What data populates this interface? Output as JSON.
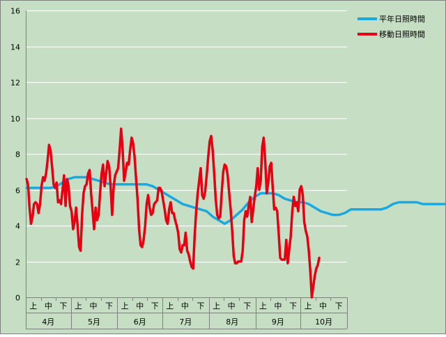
{
  "colors": {
    "background": "#c6dec3",
    "plot_border": "#7f7f7f",
    "grid": "#ffffff",
    "normal_series": "#19a9e0",
    "moving_series": "#e60012",
    "text": "#000000"
  },
  "chart_data": {
    "type": "line",
    "title": "",
    "xlabel": "",
    "ylabel": "",
    "ylim": [
      0,
      16
    ],
    "yticks": [
      0,
      2,
      4,
      6,
      8,
      10,
      12,
      14,
      16
    ],
    "grid": true,
    "legend_position": "top-right",
    "months": [
      "4月",
      "5月",
      "6月",
      "7月",
      "8月",
      "9月",
      "10月"
    ],
    "periods": [
      "上",
      "中",
      "下"
    ],
    "days_per_month": [
      30,
      31,
      30,
      31,
      31,
      30,
      31
    ],
    "series": [
      {
        "name": "平年日照時間",
        "color": "#19a9e0",
        "points": [
          [
            0,
            6.1
          ],
          [
            4,
            6.1
          ],
          [
            8,
            6.1
          ],
          [
            12,
            6.1
          ],
          [
            16,
            6.1
          ],
          [
            20,
            6.2
          ],
          [
            24,
            6.4
          ],
          [
            28,
            6.6
          ],
          [
            32,
            6.7
          ],
          [
            36,
            6.7
          ],
          [
            40,
            6.7
          ],
          [
            44,
            6.6
          ],
          [
            48,
            6.5
          ],
          [
            52,
            6.4
          ],
          [
            56,
            6.3
          ],
          [
            60,
            6.3
          ],
          [
            64,
            6.3
          ],
          [
            68,
            6.3
          ],
          [
            72,
            6.3
          ],
          [
            76,
            6.3
          ],
          [
            80,
            6.3
          ],
          [
            84,
            6.2
          ],
          [
            88,
            6.0
          ],
          [
            92,
            5.8
          ],
          [
            96,
            5.6
          ],
          [
            100,
            5.4
          ],
          [
            104,
            5.2
          ],
          [
            108,
            5.1
          ],
          [
            112,
            5.0
          ],
          [
            116,
            4.9
          ],
          [
            120,
            4.8
          ],
          [
            124,
            4.5
          ],
          [
            128,
            4.3
          ],
          [
            132,
            4.1
          ],
          [
            136,
            4.3
          ],
          [
            140,
            4.6
          ],
          [
            144,
            4.9
          ],
          [
            148,
            5.3
          ],
          [
            152,
            5.6
          ],
          [
            156,
            5.8
          ],
          [
            160,
            5.8
          ],
          [
            164,
            5.8
          ],
          [
            168,
            5.7
          ],
          [
            172,
            5.5
          ],
          [
            176,
            5.4
          ],
          [
            180,
            5.3
          ],
          [
            184,
            5.3
          ],
          [
            188,
            5.2
          ],
          [
            192,
            5.0
          ],
          [
            196,
            4.8
          ],
          [
            200,
            4.7
          ],
          [
            204,
            4.6
          ],
          [
            208,
            4.6
          ],
          [
            212,
            4.7
          ],
          [
            216,
            4.9
          ],
          [
            220,
            4.9
          ],
          [
            224,
            4.9
          ],
          [
            228,
            4.9
          ],
          [
            232,
            4.9
          ],
          [
            236,
            4.9
          ],
          [
            240,
            5.0
          ],
          [
            244,
            5.2
          ],
          [
            248,
            5.3
          ],
          [
            252,
            5.3
          ],
          [
            256,
            5.3
          ],
          [
            260,
            5.3
          ],
          [
            264,
            5.2
          ],
          [
            268,
            5.2
          ],
          [
            272,
            5.2
          ],
          [
            276,
            5.2
          ],
          [
            280,
            5.2
          ],
          [
            283,
            5.1
          ]
        ]
      },
      {
        "name": "移動日照時間",
        "color": "#e60012",
        "points": [
          [
            0,
            6.6
          ],
          [
            1,
            6.3
          ],
          [
            2,
            5.0
          ],
          [
            3,
            4.1
          ],
          [
            4,
            4.5
          ],
          [
            5,
            5.2
          ],
          [
            6,
            5.3
          ],
          [
            7,
            5.2
          ],
          [
            8,
            4.7
          ],
          [
            9,
            5.2
          ],
          [
            10,
            6.2
          ],
          [
            11,
            6.7
          ],
          [
            12,
            6.5
          ],
          [
            13,
            6.9
          ],
          [
            14,
            7.6
          ],
          [
            15,
            8.5
          ],
          [
            16,
            8.2
          ],
          [
            17,
            7.3
          ],
          [
            18,
            6.3
          ],
          [
            19,
            6.1
          ],
          [
            20,
            6.4
          ],
          [
            21,
            5.3
          ],
          [
            22,
            5.4
          ],
          [
            23,
            5.2
          ],
          [
            24,
            6.0
          ],
          [
            25,
            6.8
          ],
          [
            26,
            5.1
          ],
          [
            27,
            6.6
          ],
          [
            28,
            6.2
          ],
          [
            29,
            5.1
          ],
          [
            30,
            4.8
          ],
          [
            31,
            3.8
          ],
          [
            32,
            4.2
          ],
          [
            33,
            5.0
          ],
          [
            34,
            4.0
          ],
          [
            35,
            2.8
          ],
          [
            36,
            2.6
          ],
          [
            37,
            4.6
          ],
          [
            38,
            5.8
          ],
          [
            39,
            6.2
          ],
          [
            40,
            6.3
          ],
          [
            41,
            6.9
          ],
          [
            42,
            7.1
          ],
          [
            43,
            5.8
          ],
          [
            44,
            4.8
          ],
          [
            45,
            3.8
          ],
          [
            46,
            5.0
          ],
          [
            47,
            4.3
          ],
          [
            48,
            4.6
          ],
          [
            49,
            5.8
          ],
          [
            50,
            6.9
          ],
          [
            51,
            7.4
          ],
          [
            52,
            6.2
          ],
          [
            53,
            6.9
          ],
          [
            54,
            7.6
          ],
          [
            55,
            7.3
          ],
          [
            56,
            6.2
          ],
          [
            57,
            4.6
          ],
          [
            58,
            6.1
          ],
          [
            59,
            6.8
          ],
          [
            60,
            7.0
          ],
          [
            61,
            7.2
          ],
          [
            62,
            8.2
          ],
          [
            63,
            9.4
          ],
          [
            64,
            8.3
          ],
          [
            65,
            6.5
          ],
          [
            66,
            7.0
          ],
          [
            67,
            7.5
          ],
          [
            68,
            7.4
          ],
          [
            69,
            8.2
          ],
          [
            70,
            8.9
          ],
          [
            71,
            8.6
          ],
          [
            72,
            7.8
          ],
          [
            73,
            6.6
          ],
          [
            74,
            5.4
          ],
          [
            75,
            3.8
          ],
          [
            76,
            2.9
          ],
          [
            77,
            2.8
          ],
          [
            78,
            3.2
          ],
          [
            79,
            4.0
          ],
          [
            80,
            5.2
          ],
          [
            81,
            5.7
          ],
          [
            82,
            5.0
          ],
          [
            83,
            4.6
          ],
          [
            84,
            4.7
          ],
          [
            85,
            5.2
          ],
          [
            86,
            5.3
          ],
          [
            87,
            5.4
          ],
          [
            88,
            6.1
          ],
          [
            89,
            6.1
          ],
          [
            90,
            5.9
          ],
          [
            91,
            5.4
          ],
          [
            92,
            4.9
          ],
          [
            93,
            4.3
          ],
          [
            94,
            4.1
          ],
          [
            95,
            4.9
          ],
          [
            96,
            5.3
          ],
          [
            97,
            4.7
          ],
          [
            98,
            4.7
          ],
          [
            99,
            4.3
          ],
          [
            100,
            4.0
          ],
          [
            101,
            3.6
          ],
          [
            102,
            2.7
          ],
          [
            103,
            2.5
          ],
          [
            104,
            2.9
          ],
          [
            105,
            2.9
          ],
          [
            106,
            3.6
          ],
          [
            107,
            2.6
          ],
          [
            108,
            2.4
          ],
          [
            109,
            2.0
          ],
          [
            110,
            1.7
          ],
          [
            111,
            1.6
          ],
          [
            112,
            3.4
          ],
          [
            113,
            4.8
          ],
          [
            114,
            5.8
          ],
          [
            115,
            6.5
          ],
          [
            116,
            7.2
          ],
          [
            117,
            5.7
          ],
          [
            118,
            5.5
          ],
          [
            119,
            5.9
          ],
          [
            120,
            6.8
          ],
          [
            121,
            7.8
          ],
          [
            122,
            8.7
          ],
          [
            123,
            9.0
          ],
          [
            124,
            8.2
          ],
          [
            125,
            6.9
          ],
          [
            126,
            5.5
          ],
          [
            127,
            4.6
          ],
          [
            128,
            4.4
          ],
          [
            129,
            4.5
          ],
          [
            130,
            5.8
          ],
          [
            131,
            7.0
          ],
          [
            132,
            7.4
          ],
          [
            133,
            7.3
          ],
          [
            134,
            6.8
          ],
          [
            135,
            5.8
          ],
          [
            136,
            4.9
          ],
          [
            137,
            3.7
          ],
          [
            138,
            2.3
          ],
          [
            139,
            1.9
          ],
          [
            140,
            1.9
          ],
          [
            141,
            2.0
          ],
          [
            142,
            2.0
          ],
          [
            143,
            2.0
          ],
          [
            144,
            2.6
          ],
          [
            145,
            4.3
          ],
          [
            146,
            4.8
          ],
          [
            147,
            4.5
          ],
          [
            148,
            5.1
          ],
          [
            149,
            5.6
          ],
          [
            150,
            4.2
          ],
          [
            151,
            4.9
          ],
          [
            152,
            5.6
          ],
          [
            153,
            6.2
          ],
          [
            154,
            7.2
          ],
          [
            155,
            6.0
          ],
          [
            156,
            6.5
          ],
          [
            157,
            8.4
          ],
          [
            158,
            8.9
          ],
          [
            159,
            7.6
          ],
          [
            160,
            5.8
          ],
          [
            161,
            6.4
          ],
          [
            162,
            7.3
          ],
          [
            163,
            7.5
          ],
          [
            164,
            6.1
          ],
          [
            165,
            4.9
          ],
          [
            166,
            5.0
          ],
          [
            167,
            4.8
          ],
          [
            168,
            3.5
          ],
          [
            169,
            2.2
          ],
          [
            170,
            2.1
          ],
          [
            171,
            2.1
          ],
          [
            172,
            2.1
          ],
          [
            173,
            3.2
          ],
          [
            174,
            1.9
          ],
          [
            175,
            2.7
          ],
          [
            176,
            3.4
          ],
          [
            177,
            4.8
          ],
          [
            178,
            5.6
          ],
          [
            179,
            5.1
          ],
          [
            180,
            5.3
          ],
          [
            181,
            4.8
          ],
          [
            182,
            6.0
          ],
          [
            183,
            6.2
          ],
          [
            184,
            5.7
          ],
          [
            185,
            4.2
          ],
          [
            186,
            3.7
          ],
          [
            187,
            3.4
          ],
          [
            188,
            2.6
          ],
          [
            189,
            1.5
          ],
          [
            190,
            0.0
          ],
          [
            191,
            0.6
          ],
          [
            192,
            1.2
          ],
          [
            193,
            1.6
          ],
          [
            194,
            1.8
          ],
          [
            195,
            2.2
          ]
        ]
      }
    ]
  }
}
